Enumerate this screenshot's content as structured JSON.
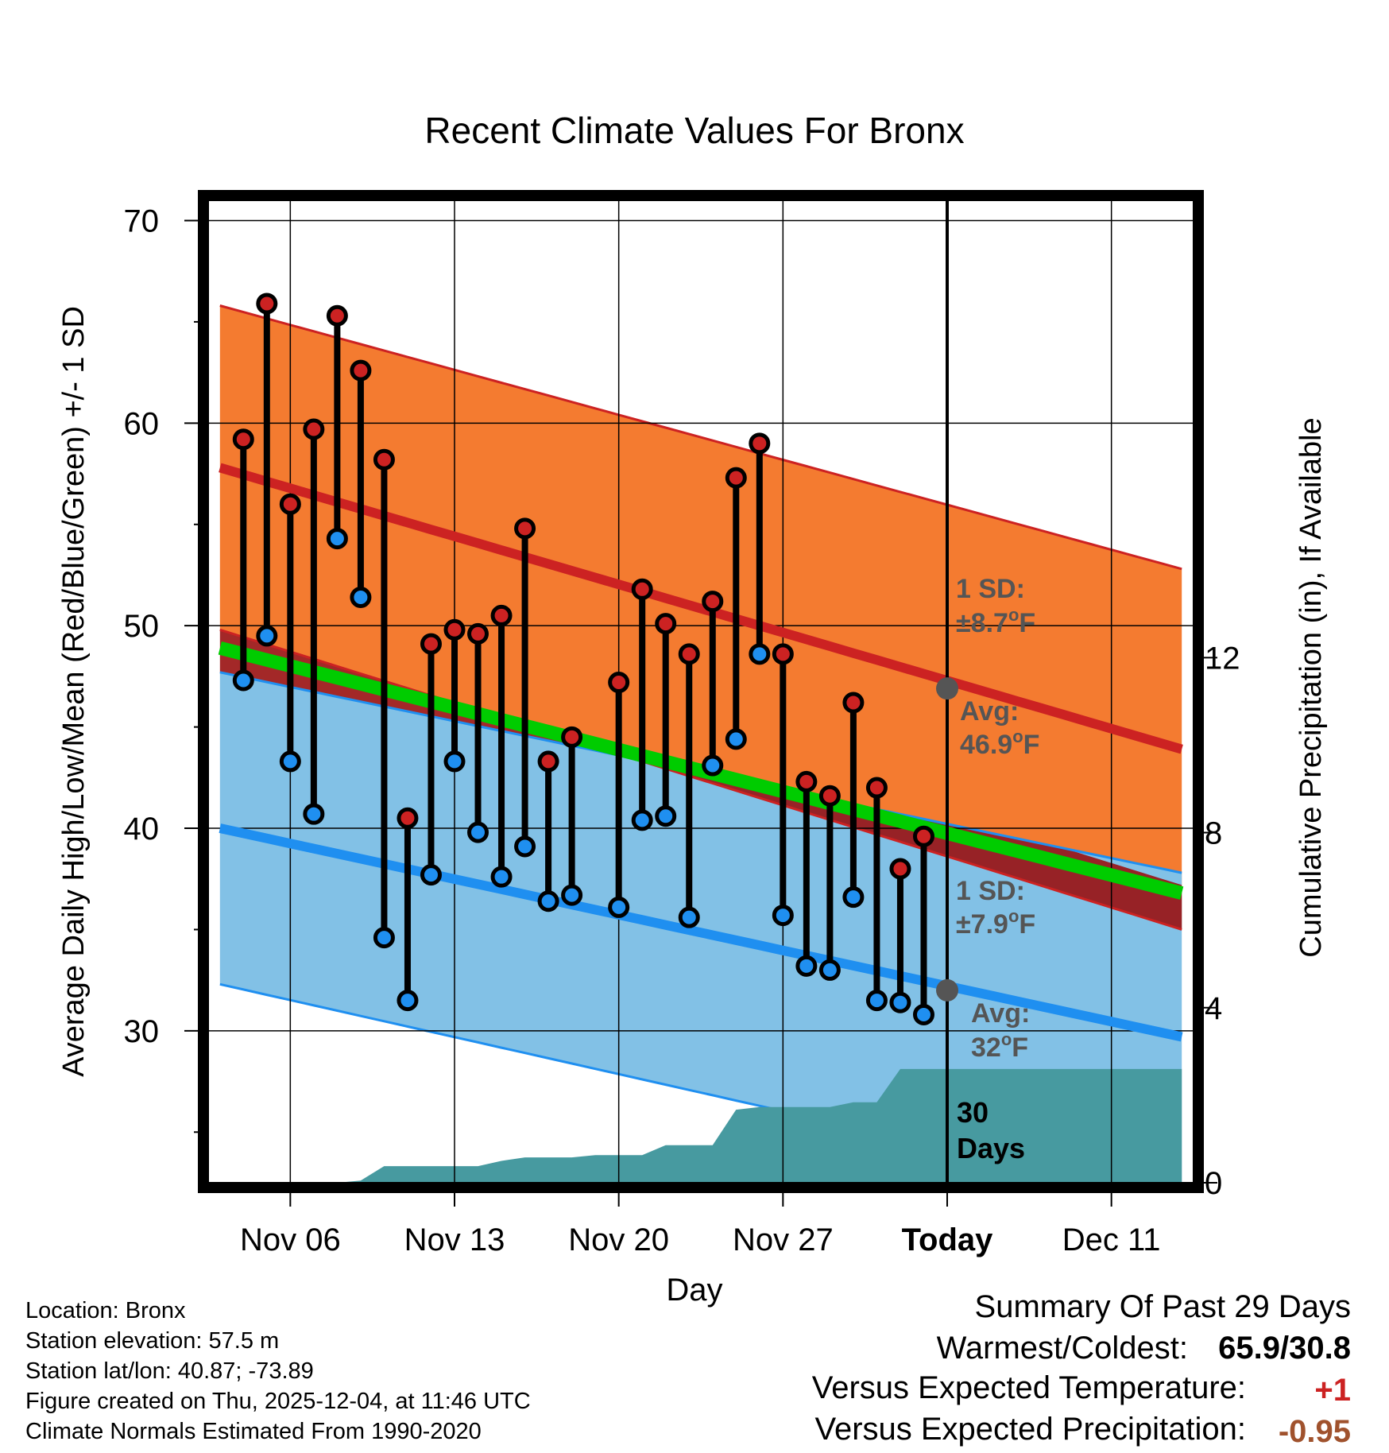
{
  "chart_data": {
    "type": "line",
    "title": "Recent Climate Values For Bronx",
    "xlabel": "Day",
    "ylabel": "Average Daily High/Low/Mean (Red/Blue/Green) +/- 1 SD",
    "y2label": "Cumulative Precipitation (in), If Available",
    "xlim": [
      -3.5,
      38.5
    ],
    "ylim": [
      22.5,
      71
    ],
    "y2lim": [
      0,
      22.45
    ],
    "xtick_pos": [
      0,
      7,
      14,
      21,
      28,
      35
    ],
    "xtick_labels": [
      "Nov 06",
      "Nov 13",
      "Nov 20",
      "Nov 27",
      "Today",
      "Dec 11"
    ],
    "ytick_labels": [
      "30",
      "40",
      "50",
      "60",
      "70"
    ],
    "ytick_values": [
      30,
      40,
      50,
      60,
      70
    ],
    "y2tick_labels": [
      "0",
      "4",
      "8",
      "12"
    ],
    "y2tick_values": [
      0,
      4,
      8,
      12
    ],
    "days": [
      -2,
      -1,
      0,
      1,
      2,
      3,
      4,
      5,
      6,
      7,
      8,
      9,
      10,
      11,
      12,
      14,
      15,
      16,
      17,
      18,
      19,
      20,
      21,
      22,
      23,
      24,
      25,
      26,
      27
    ],
    "highs": [
      59.2,
      65.9,
      56.0,
      59.7,
      65.3,
      62.6,
      58.2,
      40.5,
      49.1,
      49.8,
      49.6,
      50.5,
      54.8,
      43.3,
      44.5,
      47.2,
      51.8,
      50.1,
      48.6,
      51.2,
      57.3,
      59.0,
      48.6,
      42.3,
      41.6,
      46.2,
      42.0,
      38.0,
      39.6
    ],
    "lows": [
      47.3,
      49.5,
      43.3,
      40.7,
      54.3,
      51.4,
      34.6,
      31.5,
      37.7,
      43.3,
      39.8,
      37.6,
      39.1,
      36.4,
      36.7,
      36.1,
      40.4,
      40.6,
      35.6,
      43.1,
      44.4,
      48.6,
      35.7,
      33.2,
      33.0,
      36.6,
      31.5,
      31.4,
      30.8
    ],
    "normal_band_x": [
      -3,
      38
    ],
    "normal_high": [
      57.8,
      43.9
    ],
    "normal_high_sd": [
      8.0,
      8.9
    ],
    "normal_low": [
      40.0,
      29.7
    ],
    "normal_low_sd": [
      7.7,
      8.1
    ],
    "normal_mean": [
      48.9,
      36.8
    ],
    "precip_x": [
      -3,
      2,
      3,
      4,
      5,
      6,
      7,
      8,
      9,
      10,
      11,
      12,
      13,
      14,
      15,
      16,
      17,
      18,
      19,
      20,
      21,
      22,
      23,
      24,
      25,
      26,
      27,
      38
    ],
    "precip": [
      0,
      0,
      0.05,
      0.38,
      0.38,
      0.38,
      0.38,
      0.38,
      0.5,
      0.58,
      0.58,
      0.58,
      0.63,
      0.63,
      0.63,
      0.86,
      0.86,
      0.86,
      1.67,
      1.73,
      1.73,
      1.73,
      1.73,
      1.84,
      1.84,
      2.6,
      2.6,
      2.6
    ],
    "today_x": 28,
    "today_high": 46.9,
    "today_low": 32.0,
    "series_colors": {
      "high": "#cc2222",
      "high_band": "#f47b30",
      "low": "#1f8ff0",
      "low_band": "#82c1e6",
      "mean": "#00cc00",
      "overlap": "#991111",
      "precip": "#479aa0",
      "high_dot": "#cc2222",
      "low_dot": "#1f8ff0",
      "marker": "#555555"
    }
  },
  "annotations": {
    "high_sd_label": "1 SD:",
    "high_sd_value": "±8.7",
    "high_sd_unit": "F",
    "high_avg_label": "Avg:",
    "high_avg_value": "46.9",
    "high_avg_unit": "F",
    "low_sd_label": "1 SD:",
    "low_sd_value": "±7.9",
    "low_sd_unit": "F",
    "low_avg_label": "Avg:",
    "low_avg_value": "32",
    "low_avg_unit": "F",
    "degree": "o",
    "window_value": "30",
    "window_unit": "Days"
  },
  "station": {
    "location": "Location: Bronx",
    "elevation": "Station elevation: 57.5 m",
    "latlon": "Station lat/lon: 40.87; -73.89",
    "created": "Figure created on Thu, 2025-12-04, at 11:46 UTC",
    "normals": "Climate Normals Estimated From 1990-2020"
  },
  "summary": {
    "title": "Summary Of Past 29 Days",
    "warmest_label": "Warmest/Coldest:",
    "warmest_value": "65.9/30.8",
    "temp_label": "Versus Expected Temperature:",
    "temp_value": "+1",
    "temp_color": "#cc2222",
    "precip_label": "Versus Expected Precipitation:",
    "precip_value": "-0.95",
    "precip_color": "#a0522d"
  }
}
